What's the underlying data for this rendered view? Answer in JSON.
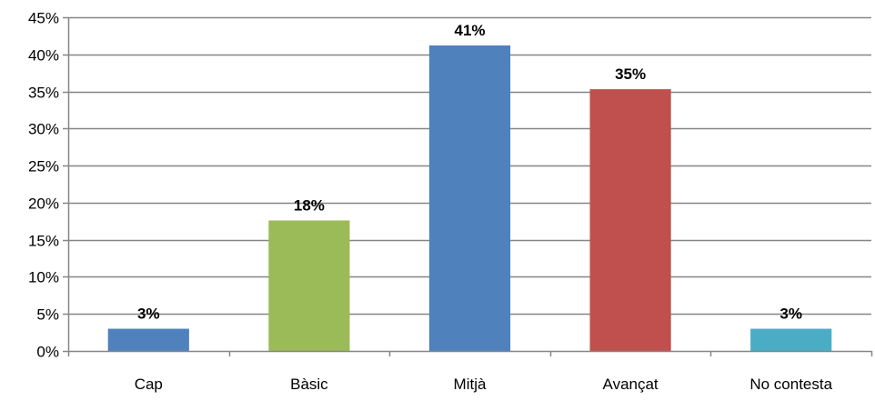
{
  "chart_data": {
    "type": "bar",
    "title": "",
    "xlabel": "",
    "ylabel": "",
    "categories": [
      "Cap",
      "Bàsic",
      "Mitjà",
      "Avançat",
      "No contesta"
    ],
    "values": [
      3,
      18,
      41,
      35,
      3
    ],
    "exact_values": [
      3.0,
      17.6,
      41.2,
      35.3,
      3.0
    ],
    "value_labels": [
      "3%",
      "18%",
      "41%",
      "35%",
      "3%"
    ],
    "colors": [
      "#4f81bd",
      "#9bbb59",
      "#4f81bd",
      "#c0504d",
      "#4bacc6"
    ],
    "ylim": [
      0,
      45
    ],
    "yticks": [
      0,
      5,
      10,
      15,
      20,
      25,
      30,
      35,
      40,
      45
    ],
    "ytick_labels": [
      "0%",
      "5%",
      "10%",
      "15%",
      "20%",
      "25%",
      "30%",
      "35%",
      "40%",
      "45%"
    ],
    "grid": true,
    "grid_color": "#868686",
    "axis_color": "#868686",
    "legend": "none"
  }
}
